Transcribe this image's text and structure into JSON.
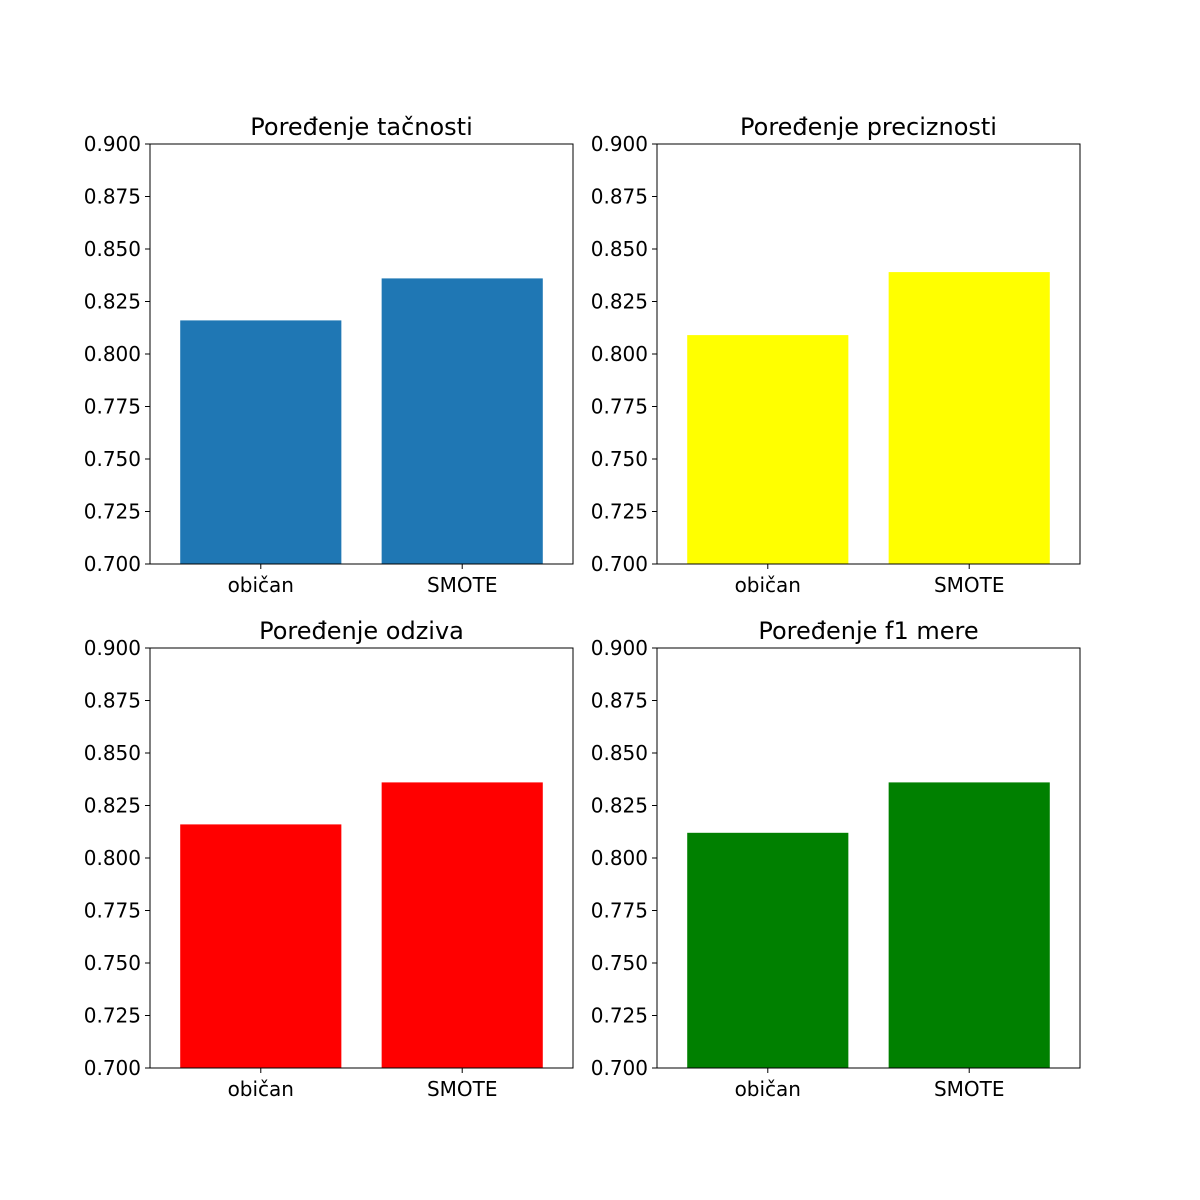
{
  "chart_data": [
    {
      "type": "bar",
      "title": "Poređenje tačnosti",
      "categories": [
        "običan",
        "SMOTE"
      ],
      "values": [
        0.816,
        0.836
      ],
      "ylim": [
        0.7,
        0.9
      ],
      "yticks": [
        "0.700",
        "0.725",
        "0.750",
        "0.775",
        "0.800",
        "0.825",
        "0.850",
        "0.875",
        "0.900"
      ],
      "color": "#1f77b4",
      "grid": false
    },
    {
      "type": "bar",
      "title": "Poređenje preciznosti",
      "categories": [
        "običan",
        "SMOTE"
      ],
      "values": [
        0.809,
        0.839
      ],
      "ylim": [
        0.7,
        0.9
      ],
      "yticks": [
        "0.700",
        "0.725",
        "0.750",
        "0.775",
        "0.800",
        "0.825",
        "0.850",
        "0.875",
        "0.900"
      ],
      "color": "#ffff00",
      "grid": false
    },
    {
      "type": "bar",
      "title": "Poređenje odziva",
      "categories": [
        "običan",
        "SMOTE"
      ],
      "values": [
        0.816,
        0.836
      ],
      "ylim": [
        0.7,
        0.9
      ],
      "yticks": [
        "0.700",
        "0.725",
        "0.750",
        "0.775",
        "0.800",
        "0.825",
        "0.850",
        "0.875",
        "0.900"
      ],
      "color": "#ff0000",
      "grid": false
    },
    {
      "type": "bar",
      "title": "Poređenje f1 mere",
      "categories": [
        "običan",
        "SMOTE"
      ],
      "values": [
        0.812,
        0.836
      ],
      "ylim": [
        0.7,
        0.9
      ],
      "yticks": [
        "0.700",
        "0.725",
        "0.750",
        "0.775",
        "0.800",
        "0.825",
        "0.850",
        "0.875",
        "0.900"
      ],
      "color": "#008000",
      "grid": false
    }
  ]
}
